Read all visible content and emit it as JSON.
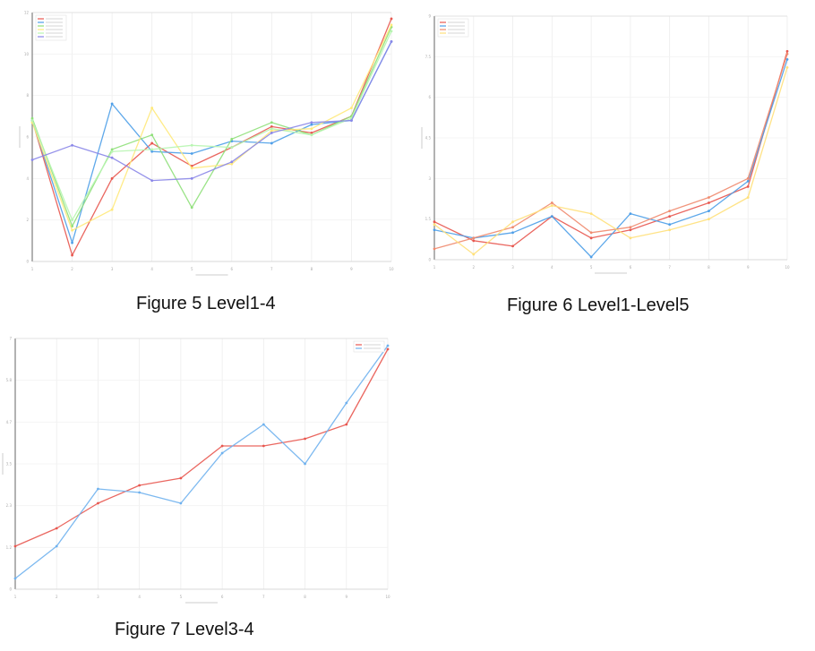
{
  "figures": [
    {
      "caption": "Figure 5 Level1-4",
      "chart_data": {
        "type": "line",
        "title": "",
        "xlabel": "",
        "ylabel": "",
        "ylim": [
          0,
          12
        ],
        "grid": true,
        "legend": "top-left",
        "x": [
          1,
          2,
          3,
          4,
          5,
          6,
          7,
          8,
          9,
          10
        ],
        "series": [
          {
            "name": "",
            "color": "#e8574f",
            "values": [
              6.8,
              0.3,
              4,
              5.7,
              4.6,
              5.5,
              6.5,
              6.2,
              7,
              11.7
            ]
          },
          {
            "name": "",
            "color": "#4d9ee8",
            "values": [
              6.8,
              0.9,
              7.6,
              5.3,
              5.2,
              5.8,
              5.7,
              6.6,
              6.8,
              10.6
            ]
          },
          {
            "name": "",
            "color": "#8fe07a",
            "values": [
              6.9,
              1.7,
              5.4,
              6.1,
              2.6,
              5.9,
              6.7,
              6.1,
              7,
              11.3
            ]
          },
          {
            "name": "",
            "color": "#ffe97a",
            "values": [
              6.7,
              1.5,
              2.5,
              7.4,
              4.5,
              4.7,
              6.3,
              6.4,
              7.4,
              11.4
            ]
          },
          {
            "name": "",
            "color": "#b7f5b0",
            "values": [
              6.8,
              2,
              5.3,
              5.4,
              5.6,
              5.5,
              6.4,
              6.1,
              6.9,
              11.1
            ]
          },
          {
            "name": "",
            "color": "#8a86e8",
            "values": [
              4.9,
              5.6,
              5,
              3.9,
              4,
              4.8,
              6.2,
              6.7,
              6.8,
              10.6
            ]
          }
        ]
      }
    },
    {
      "caption": "Figure 6 Level1-Level5",
      "chart_data": {
        "type": "line",
        "title": "",
        "xlabel": "",
        "ylabel": "",
        "ylim": [
          0,
          9
        ],
        "grid": true,
        "legend": "top-left",
        "x": [
          1,
          2,
          3,
          4,
          5,
          6,
          7,
          8,
          9,
          10
        ],
        "series": [
          {
            "name": "",
            "color": "#e8574f",
            "values": [
              1.4,
              0.7,
              0.5,
              1.6,
              0.8,
              1.1,
              1.6,
              2.1,
              2.7,
              7.7
            ]
          },
          {
            "name": "",
            "color": "#4d9ee8",
            "values": [
              1.1,
              0.8,
              1,
              1.6,
              0.1,
              1.7,
              1.3,
              1.8,
              2.9,
              7.4
            ]
          },
          {
            "name": "",
            "color": "#f08a6e",
            "values": [
              0.4,
              0.8,
              1.2,
              2.1,
              1,
              1.2,
              1.8,
              2.3,
              3,
              7.6
            ]
          },
          {
            "name": "",
            "color": "#ffe07a",
            "values": [
              1.3,
              0.2,
              1.4,
              2,
              1.7,
              0.8,
              1.1,
              1.5,
              2.3,
              7.1
            ]
          }
        ]
      }
    },
    {
      "caption": "Figure 7 Level3-4",
      "chart_data": {
        "type": "line",
        "title": "",
        "xlabel": "",
        "ylabel": "",
        "ylim": [
          0,
          7
        ],
        "grid": true,
        "legend": "top-right",
        "x": [
          1,
          2,
          3,
          4,
          5,
          6,
          7,
          8,
          9,
          10
        ],
        "series": [
          {
            "name": "",
            "color": "#e8574f",
            "values": [
              1.2,
              1.7,
              2.4,
              2.9,
              3.1,
              4,
              4,
              4.2,
              4.6,
              6.7
            ]
          },
          {
            "name": "",
            "color": "#6fb1ee",
            "values": [
              0.3,
              1.2,
              2.8,
              2.7,
              2.4,
              3.8,
              4.6,
              3.5,
              5.2,
              6.8
            ]
          }
        ]
      }
    }
  ]
}
